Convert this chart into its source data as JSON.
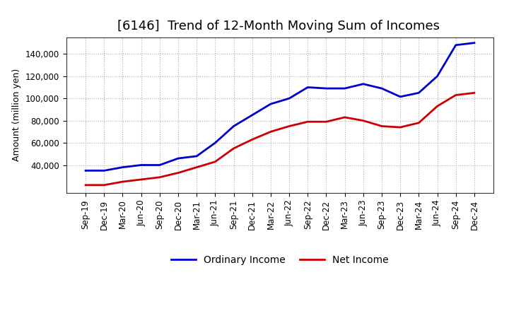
{
  "title": "[6146]  Trend of 12-Month Moving Sum of Incomes",
  "ylabel": "Amount (million yen)",
  "labels": [
    "Sep-19",
    "Dec-19",
    "Mar-20",
    "Jun-20",
    "Sep-20",
    "Dec-20",
    "Mar-21",
    "Jun-21",
    "Sep-21",
    "Dec-21",
    "Mar-22",
    "Jun-22",
    "Sep-22",
    "Dec-22",
    "Mar-23",
    "Jun-23",
    "Sep-23",
    "Dec-23",
    "Mar-24",
    "Jun-24",
    "Sep-24",
    "Dec-24"
  ],
  "ordinary_income": [
    35000,
    35000,
    38000,
    40000,
    40000,
    46000,
    48000,
    60000,
    75000,
    85000,
    95000,
    100000,
    110000,
    109000,
    109000,
    113000,
    109000,
    101500,
    105000,
    120000,
    148000,
    150000
  ],
  "net_income": [
    22000,
    22000,
    25000,
    27000,
    29000,
    33000,
    38000,
    43000,
    55000,
    63000,
    70000,
    75000,
    79000,
    79000,
    83000,
    80000,
    75000,
    74000,
    78000,
    93000,
    103000,
    105000
  ],
  "ordinary_color": "#0000cc",
  "net_color": "#cc0000",
  "line_width": 2.0,
  "ylim_min": 15000,
  "ylim_max": 155000,
  "yticks": [
    40000,
    60000,
    80000,
    100000,
    120000,
    140000
  ],
  "background_color": "#ffffff",
  "grid_color": "#888888",
  "legend_ordinary": "Ordinary Income",
  "legend_net": "Net Income",
  "title_fontsize": 13,
  "axis_fontsize": 9,
  "tick_fontsize": 8.5
}
